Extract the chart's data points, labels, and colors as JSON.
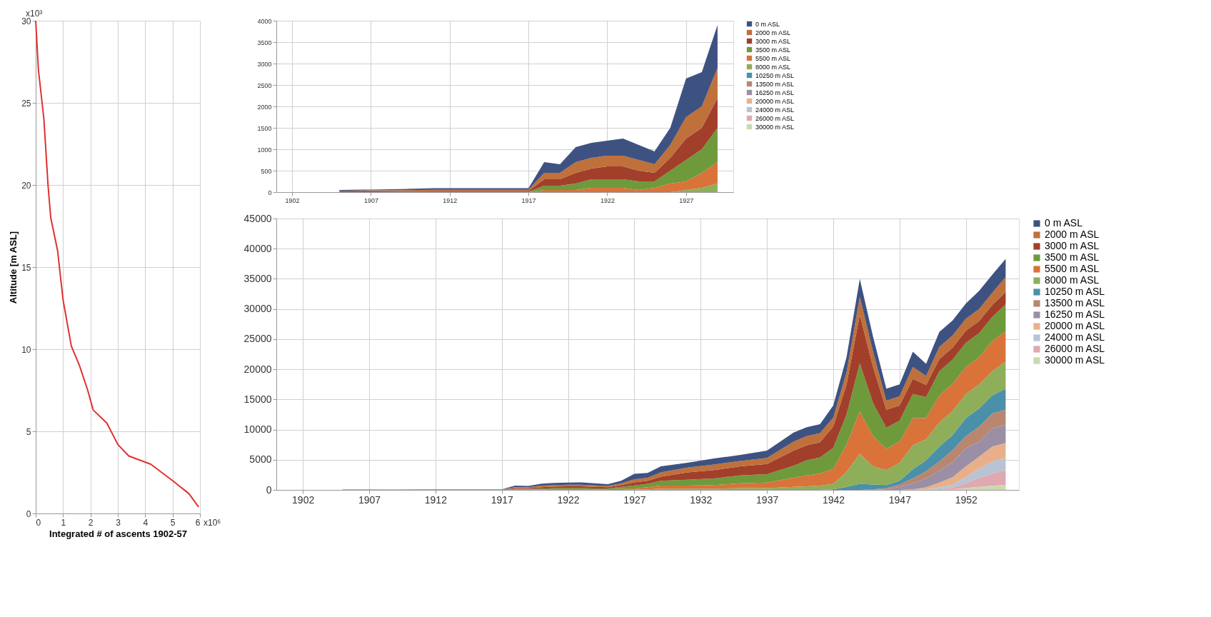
{
  "chart_data": [
    {
      "type": "line",
      "xlabel": "Integrated # of ascents 1902-57",
      "ylabel": "Altitude [m ASL]",
      "xlim": [
        0,
        6
      ],
      "ylim": [
        0,
        30
      ],
      "xticks": [
        0,
        1,
        2,
        3,
        4,
        5,
        6
      ],
      "yticks": [
        0,
        5,
        10,
        15,
        20,
        25,
        30
      ],
      "grid": true,
      "annotations": [
        "x10⁶",
        "x10³"
      ],
      "series": [
        {
          "color": "#e03030",
          "x": [
            0,
            0.1,
            0.3,
            0.45,
            0.55,
            0.8,
            1.0,
            1.3,
            1.6,
            1.9,
            2.1,
            2.6,
            3.0,
            3.4,
            4.2,
            5.0,
            5.6,
            5.95
          ],
          "values": [
            30,
            27,
            24,
            20,
            18,
            16,
            13,
            10.2,
            9,
            7.5,
            6.3,
            5.5,
            4.2,
            3.5,
            3.0,
            2.0,
            1.2,
            0.4
          ]
        }
      ]
    },
    {
      "type": "area",
      "stacked": true,
      "xlim": [
        1901,
        1930
      ],
      "ylim": [
        0,
        4000
      ],
      "xticks": [
        1902,
        1907,
        1912,
        1917,
        1922,
        1927
      ],
      "yticks": [
        0,
        500,
        1000,
        1500,
        2000,
        2500,
        3000,
        3500,
        4000
      ],
      "grid": true,
      "legend": "right",
      "x": [
        1905,
        1907,
        1909,
        1911,
        1913,
        1915,
        1917,
        1918,
        1919,
        1920,
        1921,
        1922,
        1923,
        1924,
        1925,
        1926,
        1927,
        1928,
        1929
      ],
      "series": [
        {
          "name": "30000 m ASL",
          "color": "#cdd8b0",
          "values": [
            null,
            null,
            null,
            null,
            null,
            null,
            null,
            null,
            null,
            null,
            null,
            null,
            null,
            null,
            null,
            null,
            null,
            null,
            null
          ]
        },
        {
          "name": "26000 m ASL",
          "color": "#e0a8b0",
          "values": [
            null,
            null,
            null,
            null,
            null,
            null,
            null,
            null,
            null,
            null,
            null,
            null,
            null,
            null,
            null,
            null,
            null,
            null,
            null
          ]
        },
        {
          "name": "24000 m ASL",
          "color": "#b8c4d4",
          "values": [
            null,
            null,
            null,
            null,
            null,
            null,
            null,
            null,
            null,
            null,
            null,
            null,
            null,
            null,
            null,
            null,
            null,
            null,
            null
          ]
        },
        {
          "name": "20000 m ASL",
          "color": "#e8b08a",
          "values": [
            null,
            null,
            null,
            null,
            null,
            null,
            null,
            null,
            null,
            null,
            null,
            null,
            null,
            null,
            null,
            null,
            null,
            null,
            null
          ]
        },
        {
          "name": "16250 m ASL",
          "color": "#9a8fa5",
          "values": [
            null,
            null,
            null,
            null,
            null,
            null,
            null,
            null,
            null,
            null,
            null,
            null,
            null,
            null,
            null,
            null,
            null,
            null,
            null
          ]
        },
        {
          "name": "13500 m ASL",
          "color": "#b98670",
          "values": [
            null,
            null,
            null,
            null,
            null,
            null,
            null,
            null,
            null,
            null,
            null,
            null,
            null,
            null,
            null,
            null,
            null,
            null,
            null
          ]
        },
        {
          "name": "10250 m ASL",
          "color": "#4a90a8",
          "values": [
            null,
            null,
            null,
            null,
            null,
            null,
            null,
            null,
            null,
            null,
            null,
            null,
            null,
            null,
            null,
            null,
            null,
            null,
            null
          ]
        },
        {
          "name": "8000 m ASL",
          "color": "#8fae5a",
          "values": [
            0,
            0,
            0,
            0,
            0,
            0,
            0,
            0,
            0,
            0,
            0,
            0,
            0,
            0,
            0,
            0,
            50,
            100,
            200
          ]
        },
        {
          "name": "5500 m ASL",
          "color": "#d9733a",
          "values": [
            0,
            0,
            0,
            0,
            0,
            0,
            0,
            50,
            50,
            50,
            100,
            100,
            100,
            50,
            100,
            200,
            200,
            350,
            500
          ]
        },
        {
          "name": "3500 m ASL",
          "color": "#6e9a3c",
          "values": [
            0,
            0,
            5,
            5,
            5,
            5,
            5,
            100,
            100,
            150,
            200,
            200,
            200,
            200,
            150,
            300,
            500,
            550,
            800
          ]
        },
        {
          "name": "3000 m ASL",
          "color": "#a23f2b",
          "values": [
            15,
            20,
            20,
            25,
            25,
            25,
            25,
            150,
            150,
            250,
            250,
            300,
            300,
            250,
            200,
            300,
            500,
            500,
            700
          ]
        },
        {
          "name": "2000 m ASL",
          "color": "#c0703a",
          "values": [
            15,
            20,
            20,
            25,
            25,
            25,
            25,
            150,
            150,
            250,
            250,
            250,
            250,
            250,
            200,
            300,
            500,
            500,
            700
          ]
        },
        {
          "name": "0 m ASL",
          "color": "#3e5282",
          "values": [
            20,
            20,
            25,
            35,
            35,
            35,
            35,
            250,
            200,
            350,
            350,
            350,
            400,
            350,
            300,
            400,
            900,
            800,
            1000
          ]
        }
      ]
    },
    {
      "type": "area",
      "stacked": true,
      "xlim": [
        1900,
        1956
      ],
      "ylim": [
        0,
        45000
      ],
      "xticks": [
        1902,
        1907,
        1912,
        1917,
        1922,
        1927,
        1932,
        1937,
        1942,
        1947,
        1952
      ],
      "yticks": [
        0,
        5000,
        10000,
        15000,
        20000,
        25000,
        30000,
        35000,
        40000,
        45000
      ],
      "grid": true,
      "legend": "right",
      "x": [
        1905,
        1907,
        1909,
        1911,
        1913,
        1915,
        1917,
        1918,
        1919,
        1920,
        1921,
        1922,
        1923,
        1924,
        1925,
        1926,
        1927,
        1928,
        1929,
        1931,
        1933,
        1935,
        1937,
        1939,
        1940,
        1941,
        1942,
        1943,
        1944,
        1945,
        1946,
        1947,
        1948,
        1949,
        1950,
        1951,
        1952,
        1953,
        1954,
        1955
      ],
      "series": [
        {
          "name": "30000 m ASL",
          "color": "#cdd8b0",
          "values": [
            0,
            0,
            0,
            0,
            0,
            0,
            0,
            0,
            0,
            0,
            0,
            0,
            0,
            0,
            0,
            0,
            0,
            0,
            0,
            0,
            0,
            0,
            0,
            0,
            0,
            0,
            0,
            0,
            0,
            0,
            0,
            0,
            0,
            0,
            0,
            100,
            300,
            500,
            700,
            800
          ]
        },
        {
          "name": "26000 m ASL",
          "color": "#e0a8b0",
          "values": [
            0,
            0,
            0,
            0,
            0,
            0,
            0,
            0,
            0,
            0,
            0,
            0,
            0,
            0,
            0,
            0,
            0,
            0,
            0,
            0,
            0,
            0,
            0,
            0,
            0,
            0,
            0,
            0,
            0,
            0,
            0,
            0,
            0,
            0,
            100,
            300,
            800,
            1500,
            2000,
            2500
          ]
        },
        {
          "name": "24000 m ASL",
          "color": "#b8c4d4",
          "values": [
            0,
            0,
            0,
            0,
            0,
            0,
            0,
            0,
            0,
            0,
            0,
            0,
            0,
            0,
            0,
            0,
            0,
            0,
            0,
            0,
            0,
            0,
            0,
            0,
            0,
            0,
            0,
            0,
            0,
            0,
            0,
            0,
            0,
            100,
            300,
            500,
            1000,
            1500,
            2000,
            2000
          ]
        },
        {
          "name": "20000 m ASL",
          "color": "#e8b08a",
          "values": [
            0,
            0,
            0,
            0,
            0,
            0,
            0,
            0,
            0,
            0,
            0,
            0,
            0,
            0,
            0,
            0,
            0,
            0,
            0,
            0,
            0,
            0,
            0,
            0,
            0,
            0,
            0,
            0,
            0,
            0,
            0,
            0,
            100,
            300,
            800,
            1200,
            1800,
            2000,
            2500,
            2500
          ]
        },
        {
          "name": "16250 m ASL",
          "color": "#9a8fa5",
          "values": [
            0,
            0,
            0,
            0,
            0,
            0,
            0,
            0,
            0,
            0,
            0,
            0,
            0,
            0,
            0,
            0,
            0,
            0,
            0,
            0,
            0,
            0,
            0,
            0,
            0,
            0,
            0,
            0,
            0,
            0,
            100,
            500,
            1000,
            1500,
            2000,
            2500,
            3000,
            2500,
            3000,
            3000
          ]
        },
        {
          "name": "13500 m ASL",
          "color": "#b98670",
          "values": [
            0,
            0,
            0,
            0,
            0,
            0,
            0,
            0,
            0,
            0,
            0,
            0,
            0,
            0,
            0,
            0,
            0,
            0,
            0,
            0,
            0,
            0,
            0,
            0,
            0,
            0,
            0,
            0,
            0,
            100,
            200,
            400,
            800,
            1200,
            1500,
            2000,
            2000,
            2500,
            2500,
            2500
          ]
        },
        {
          "name": "10250 m ASL",
          "color": "#4a90a8",
          "values": [
            0,
            0,
            0,
            0,
            0,
            0,
            0,
            0,
            0,
            0,
            0,
            0,
            0,
            0,
            0,
            0,
            0,
            0,
            0,
            0,
            0,
            0,
            0,
            0,
            0,
            0,
            100,
            500,
            1000,
            800,
            500,
            600,
            1500,
            1800,
            2500,
            2500,
            3000,
            3000,
            3000,
            3500
          ]
        },
        {
          "name": "8000 m ASL",
          "color": "#8fae5a",
          "values": [
            0,
            0,
            0,
            0,
            0,
            0,
            0,
            0,
            0,
            0,
            0,
            0,
            0,
            0,
            0,
            0,
            50,
            100,
            200,
            200,
            200,
            300,
            300,
            500,
            600,
            700,
            900,
            2500,
            5000,
            3000,
            2500,
            3000,
            4000,
            3500,
            4000,
            4000,
            4000,
            4000,
            4000,
            4500
          ]
        },
        {
          "name": "5500 m ASL",
          "color": "#d9733a",
          "values": [
            0,
            0,
            0,
            0,
            0,
            0,
            0,
            50,
            50,
            50,
            100,
            100,
            100,
            50,
            100,
            200,
            200,
            350,
            500,
            500,
            600,
            800,
            900,
            1500,
            1800,
            2000,
            2500,
            4500,
            7000,
            5000,
            3500,
            3500,
            4500,
            3500,
            4500,
            4500,
            4500,
            4500,
            5000,
            5000
          ]
        },
        {
          "name": "3500 m ASL",
          "color": "#6e9a3c",
          "values": [
            0,
            0,
            5,
            5,
            5,
            5,
            5,
            100,
            100,
            150,
            200,
            200,
            200,
            200,
            150,
            300,
            500,
            550,
            800,
            1000,
            1100,
            1300,
            1400,
            2000,
            2500,
            2700,
            3500,
            5000,
            8000,
            5500,
            3500,
            3500,
            4000,
            3500,
            4000,
            4000,
            4000,
            4000,
            4000,
            4500
          ]
        },
        {
          "name": "3000 m ASL",
          "color": "#a23f2b",
          "values": [
            15,
            20,
            20,
            25,
            25,
            25,
            25,
            150,
            150,
            250,
            250,
            300,
            300,
            250,
            200,
            300,
            500,
            500,
            700,
            1200,
            1400,
            1500,
            1700,
            2500,
            2500,
            2500,
            3500,
            5000,
            8000,
            6000,
            3000,
            2500,
            2500,
            2000,
            2000,
            2000,
            2000,
            2000,
            2000,
            2000
          ]
        },
        {
          "name": "2000 m ASL",
          "color": "#c0703a",
          "values": [
            15,
            20,
            20,
            25,
            25,
            25,
            25,
            150,
            150,
            250,
            250,
            250,
            250,
            250,
            200,
            300,
            500,
            500,
            700,
            800,
            900,
            900,
            1000,
            1500,
            1500,
            1500,
            1500,
            2000,
            3000,
            2500,
            1500,
            1500,
            2000,
            1500,
            2000,
            2000,
            2000,
            2000,
            2000,
            2500
          ]
        },
        {
          "name": "0 m ASL",
          "color": "#3e5282",
          "values": [
            20,
            20,
            25,
            35,
            35,
            35,
            35,
            250,
            200,
            350,
            350,
            350,
            400,
            350,
            300,
            400,
            900,
            800,
            1000,
            800,
            1000,
            1000,
            1200,
            1500,
            1500,
            1500,
            2000,
            2500,
            3000,
            2500,
            2000,
            2000,
            2500,
            2000,
            2500,
            2500,
            2500,
            3000,
            3000,
            3000
          ]
        }
      ]
    }
  ]
}
